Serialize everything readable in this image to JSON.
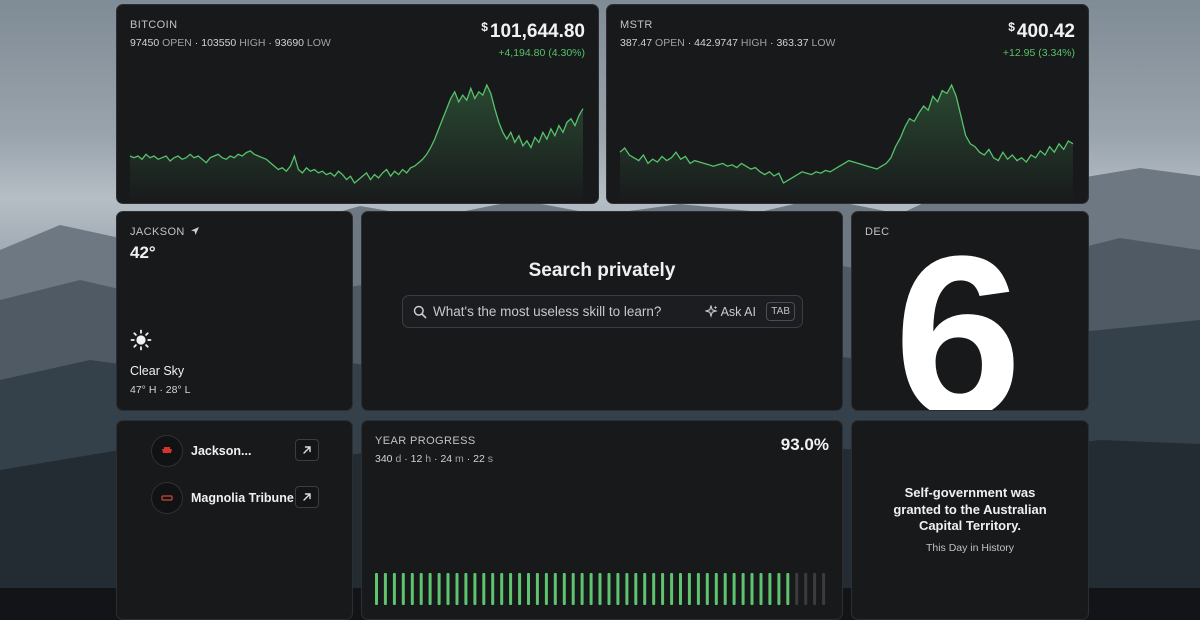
{
  "stocks": [
    {
      "symbol": "BITCOIN",
      "open": "97450",
      "high": "103550",
      "low": "93690",
      "open_label": "OPEN",
      "high_label": "HIGH",
      "low_label": "LOW",
      "currency": "$",
      "price": "101,644.80",
      "change": "+4,194.80 (4.30%)",
      "trend_color": "#56c26b",
      "series": [
        52,
        51,
        52,
        50,
        53,
        51,
        52,
        50,
        51,
        52,
        49,
        51,
        52,
        50,
        51,
        53,
        51,
        52,
        50,
        48,
        51,
        52,
        53,
        51,
        50,
        52,
        51,
        53,
        52,
        54,
        55,
        53,
        52,
        51,
        50,
        48,
        46,
        44,
        45,
        43,
        46,
        52,
        44,
        42,
        45,
        43,
        44,
        42,
        43,
        41,
        42,
        40,
        43,
        41,
        38,
        40,
        36,
        38,
        40,
        42,
        38,
        41,
        39,
        42,
        44,
        40,
        43,
        41,
        44,
        42,
        45,
        46,
        48,
        50,
        53,
        57,
        62,
        68,
        74,
        80,
        86,
        90,
        84,
        88,
        85,
        92,
        86,
        90,
        88,
        94,
        89,
        80,
        72,
        66,
        62,
        66,
        60,
        64,
        58,
        61,
        57,
        63,
        60,
        66,
        62,
        68,
        64,
        70,
        66,
        72,
        74,
        70,
        76,
        80
      ]
    },
    {
      "symbol": "MSTR",
      "open": "387.47",
      "high": "442.9747",
      "low": "363.37",
      "open_label": "OPEN",
      "high_label": "HIGH",
      "low_label": "LOW",
      "currency": "$",
      "price": "400.42",
      "change": "+12.95 (3.34%)",
      "trend_color": "#56c26b",
      "series": [
        52,
        55,
        50,
        48,
        46,
        50,
        44,
        47,
        45,
        49,
        46,
        48,
        52,
        47,
        49,
        44,
        46,
        45,
        44,
        43,
        42,
        43,
        44,
        42,
        43,
        41,
        44,
        42,
        40,
        41,
        38,
        36,
        38,
        35,
        37,
        30,
        32,
        34,
        36,
        38,
        37,
        36,
        38,
        37,
        39,
        38,
        40,
        42,
        44,
        46,
        45,
        44,
        43,
        42,
        41,
        40,
        42,
        44,
        48,
        56,
        62,
        70,
        76,
        74,
        80,
        85,
        82,
        92,
        88,
        96,
        94,
        100,
        92,
        78,
        64,
        58,
        56,
        52,
        50,
        54,
        48,
        46,
        52,
        47,
        50,
        46,
        48,
        45,
        50,
        48,
        53,
        50,
        56,
        52,
        58,
        54,
        60,
        58
      ]
    }
  ],
  "weather": {
    "city": "JACKSON",
    "temp": "42°",
    "condition": "Clear Sky",
    "high": "47°",
    "high_label": "H",
    "low": "28°",
    "low_label": "L"
  },
  "search": {
    "title": "Search privately",
    "placeholder": "What's the most useless skill to learn?",
    "ask_label": "Ask AI",
    "tab_label": "TAB"
  },
  "calendar": {
    "month": "DEC",
    "day": "6"
  },
  "feeds": [
    {
      "name": "Jackson...",
      "logo_color": "#d2362a"
    },
    {
      "name": "Magnolia Tribune",
      "logo_color": "#c84a3a"
    }
  ],
  "year_progress": {
    "label": "YEAR PROGRESS",
    "days": "340",
    "days_unit": "d",
    "hours": "12",
    "hours_unit": "h",
    "minutes": "24",
    "minutes_unit": "m",
    "seconds": "22",
    "seconds_unit": "s",
    "percent_text": "93.0%",
    "fraction": 0.93,
    "bar_count": 51,
    "fill_color": "#5fc46f",
    "empty_color": "#3a3c40"
  },
  "history": {
    "text": "Self-government was granted to the Australian Capital Territory.",
    "source": "This Day in History"
  }
}
